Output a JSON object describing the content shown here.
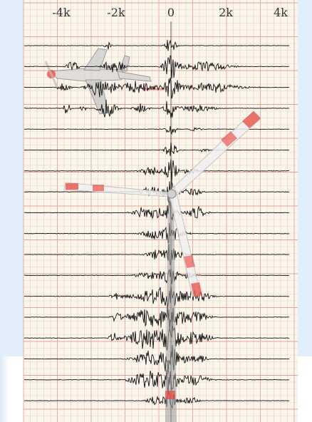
{
  "colors": {
    "paper": "#fbf6ec",
    "grid_minor": "#f0c9c0",
    "grid_major": "#e3a598",
    "trace": "#141414",
    "blade_stripe": "#e8403a",
    "blade_white": "#f4f4f4",
    "tower": "#9a9a9a",
    "background": "#e3eefb"
  },
  "icons": {
    "overlay_1": "airplane-icon",
    "overlay_2": "wind-turbine-icon"
  },
  "chart_data": {
    "type": "line",
    "title": "",
    "xlabel": "",
    "ylabel": "",
    "xlim": [
      -4500,
      4200
    ],
    "x_ticks": [
      {
        "value": -4000,
        "label": "-4k"
      },
      {
        "value": -2000,
        "label": "-2k"
      },
      {
        "value": 0,
        "label": "0"
      },
      {
        "value": 2000,
        "label": "2k"
      },
      {
        "value": 4000,
        "label": "4k"
      }
    ],
    "grid": true,
    "legend": "none",
    "trace_count": 18,
    "series": [
      {
        "events": [
          {
            "x": -2300,
            "w": 130,
            "a": 0.35
          },
          {
            "x": 0,
            "w": 160,
            "a": 1.0
          }
        ]
      },
      {
        "events": [
          {
            "x": -3600,
            "w": 200,
            "a": 0.5
          },
          {
            "x": -2100,
            "w": 350,
            "a": 0.7
          },
          {
            "x": 0,
            "w": 250,
            "a": 1.0
          },
          {
            "x": 1200,
            "w": 900,
            "a": 0.4
          }
        ]
      },
      {
        "events": [
          {
            "x": -3900,
            "w": 200,
            "a": 0.5
          },
          {
            "x": -2500,
            "w": 500,
            "a": 0.8
          },
          {
            "x": -1200,
            "w": 600,
            "a": 0.5
          },
          {
            "x": 0,
            "w": 280,
            "a": 1.0
          },
          {
            "x": 1500,
            "w": 1000,
            "a": 0.4
          }
        ]
      },
      {
        "events": [
          {
            "x": -3800,
            "w": 120,
            "a": 0.5
          },
          {
            "x": -3200,
            "w": 100,
            "a": 0.4
          },
          {
            "x": -2300,
            "w": 300,
            "a": 0.8
          },
          {
            "x": -1100,
            "w": 250,
            "a": 0.4
          },
          {
            "x": 0,
            "w": 220,
            "a": 0.9
          },
          {
            "x": 1000,
            "w": 600,
            "a": 0.3
          }
        ]
      },
      {
        "events": [
          {
            "x": 0,
            "w": 180,
            "a": 0.6
          },
          {
            "x": 900,
            "w": 200,
            "a": 0.2
          }
        ]
      },
      {
        "events": [
          {
            "x": 0,
            "w": 200,
            "a": 0.7
          },
          {
            "x": 1200,
            "w": 150,
            "a": 0.2
          }
        ]
      },
      {
        "events": [
          {
            "x": -700,
            "w": 350,
            "a": 0.45
          },
          {
            "x": 0,
            "w": 200,
            "a": 1.0
          },
          {
            "x": 700,
            "w": 250,
            "a": 0.3
          }
        ]
      },
      {
        "events": [
          {
            "x": -650,
            "w": 400,
            "a": 0.5
          },
          {
            "x": 0,
            "w": 220,
            "a": 1.0
          },
          {
            "x": 800,
            "w": 300,
            "a": 0.4
          }
        ]
      },
      {
        "events": [
          {
            "x": -800,
            "w": 500,
            "a": 0.6
          },
          {
            "x": 0,
            "w": 250,
            "a": 1.0
          },
          {
            "x": 900,
            "w": 350,
            "a": 0.5
          }
        ]
      },
      {
        "events": [
          {
            "x": -600,
            "w": 400,
            "a": 0.5
          },
          {
            "x": 0,
            "w": 220,
            "a": 1.0
          },
          {
            "x": 500,
            "w": 200,
            "a": 0.3
          }
        ]
      },
      {
        "events": [
          {
            "x": -500,
            "w": 350,
            "a": 0.4
          },
          {
            "x": 0,
            "w": 200,
            "a": 0.9
          },
          {
            "x": 400,
            "w": 150,
            "a": 0.2
          }
        ]
      },
      {
        "events": [
          {
            "x": -700,
            "w": 500,
            "a": 0.35
          },
          {
            "x": 0,
            "w": 250,
            "a": 0.8
          },
          {
            "x": 600,
            "w": 300,
            "a": 0.3
          }
        ]
      },
      {
        "events": [
          {
            "x": -2000,
            "w": 200,
            "a": 0.3
          },
          {
            "x": -700,
            "w": 700,
            "a": 0.7
          },
          {
            "x": 0,
            "w": 300,
            "a": 1.0
          },
          {
            "x": 900,
            "w": 500,
            "a": 0.5
          }
        ]
      },
      {
        "events": [
          {
            "x": -2000,
            "w": 150,
            "a": 0.4
          },
          {
            "x": -800,
            "w": 700,
            "a": 0.9
          },
          {
            "x": 0,
            "w": 300,
            "a": 1.0
          },
          {
            "x": 800,
            "w": 500,
            "a": 0.6
          }
        ]
      },
      {
        "events": [
          {
            "x": -2100,
            "w": 150,
            "a": 0.4
          },
          {
            "x": -800,
            "w": 700,
            "a": 0.9
          },
          {
            "x": 0,
            "w": 350,
            "a": 1.0
          },
          {
            "x": 900,
            "w": 500,
            "a": 0.6
          }
        ]
      },
      {
        "events": [
          {
            "x": -700,
            "w": 600,
            "a": 0.7
          },
          {
            "x": 0,
            "w": 300,
            "a": 1.0
          },
          {
            "x": 800,
            "w": 450,
            "a": 0.5
          }
        ]
      },
      {
        "events": [
          {
            "x": -800,
            "w": 600,
            "a": 0.7
          },
          {
            "x": 0,
            "w": 300,
            "a": 1.0
          },
          {
            "x": 900,
            "w": 500,
            "a": 0.5
          }
        ]
      },
      {
        "events": [
          {
            "x": -500,
            "w": 350,
            "a": 0.4
          },
          {
            "x": 0,
            "w": 220,
            "a": 0.7
          },
          {
            "x": 700,
            "w": 300,
            "a": 0.3
          }
        ]
      }
    ]
  }
}
